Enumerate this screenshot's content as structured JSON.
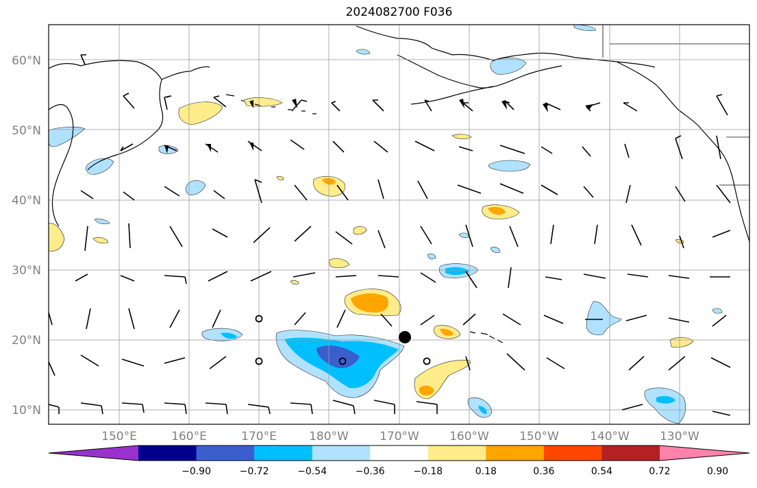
{
  "title": "2024082700 F036",
  "map": {
    "lat_ticks": [
      {
        "value": 60,
        "label": "60°N"
      },
      {
        "value": 50,
        "label": "50°N"
      },
      {
        "value": 40,
        "label": "40°N"
      },
      {
        "value": 30,
        "label": "30°N"
      },
      {
        "value": 20,
        "label": "20°N"
      },
      {
        "value": 10,
        "label": "10°N"
      }
    ],
    "lon_ticks": [
      {
        "value": 150,
        "label": "150°E"
      },
      {
        "value": 160,
        "label": "160°E"
      },
      {
        "value": 170,
        "label": "170°E"
      },
      {
        "value": 180,
        "label": "180°W"
      },
      {
        "value": 190,
        "label": "170°W"
      },
      {
        "value": 200,
        "label": "160°W"
      },
      {
        "value": 210,
        "label": "150°W"
      },
      {
        "value": 220,
        "label": "140°W"
      },
      {
        "value": 230,
        "label": "130°W"
      }
    ],
    "colorbar": {
      "colors": [
        "#9932cc",
        "#00008b",
        "#3a5fcd",
        "#00bfff",
        "#b0e2ff",
        "#ffffff",
        "#ffec8b",
        "#ffa500",
        "#ff4500",
        "#b22222",
        "#ff82ab"
      ],
      "labels": [
        "−0.90",
        "−0.72",
        "−0.54",
        "−0.36",
        "−0.18",
        "0.18",
        "0.36",
        "0.54",
        "0.72",
        "0.90"
      ]
    }
  }
}
